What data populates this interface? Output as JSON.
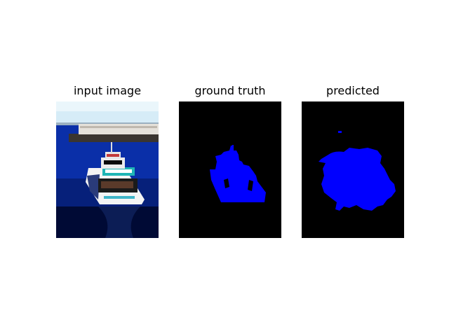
{
  "figure": {
    "background": "#ffffff",
    "panels": [
      {
        "title": "input image"
      },
      {
        "title": "ground truth"
      },
      {
        "title": "predicted"
      }
    ]
  },
  "colors": {
    "mask_background": "#000000",
    "mask_foreground": "#0000ff",
    "water": "#0a2a9a",
    "sky": "#cfe8f5",
    "pier": "#d9d4cc",
    "boat_hull": "#f2f2f2",
    "boat_sign": "#1fb5b5"
  }
}
